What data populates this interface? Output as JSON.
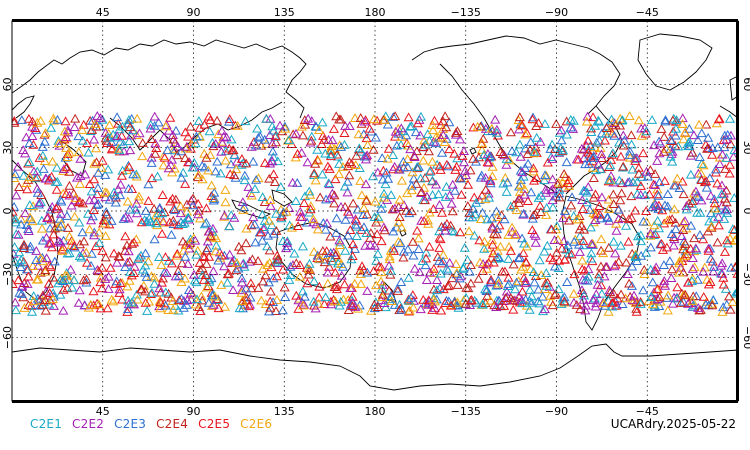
{
  "map": {
    "lon_ticks": [
      "45",
      "90",
      "135",
      "180",
      "−135",
      "−90",
      "−45"
    ],
    "lon_values": [
      45,
      90,
      135,
      180,
      225,
      270,
      315
    ],
    "lat_ticks": [
      "60",
      "30",
      "0",
      "−30",
      "−60"
    ],
    "lat_values": [
      60,
      30,
      0,
      -30,
      -60
    ],
    "lon_range": [
      0,
      360
    ],
    "lat_range": [
      -90,
      90
    ],
    "grid": "dotted",
    "marker": "triangle-outline",
    "observation_band_lat": [
      -45,
      45
    ],
    "series": [
      {
        "name": "C2E1",
        "color": "#19a9c7"
      },
      {
        "name": "C2E2",
        "color": "#a51fb5"
      },
      {
        "name": "C2E3",
        "color": "#2e6fd1"
      },
      {
        "name": "C2E4",
        "color": "#c2221c"
      },
      {
        "name": "C2E5",
        "color": "#e8141d"
      },
      {
        "name": "C2E6",
        "color": "#f2a70e"
      }
    ]
  },
  "footer": {
    "stamp": "UCARdry.2025-05-22"
  }
}
